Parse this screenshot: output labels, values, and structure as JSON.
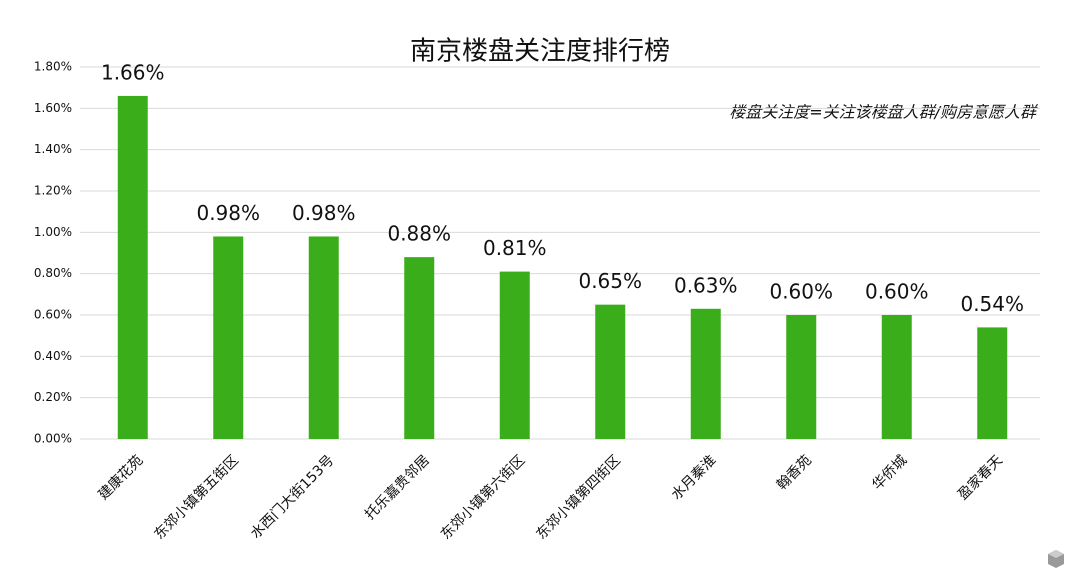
{
  "chart_data": {
    "type": "bar",
    "title": "南京楼盘关注度排行榜",
    "annotation": "楼盘关注度=关注该楼盘人群/购房意愿人群",
    "categories": [
      "建康花苑",
      "东郊小镇第五街区",
      "水西门大街153号",
      "托乐嘉贵邻居",
      "东郊小镇第六街区",
      "东郊小镇第四街区",
      "水月秦淮",
      "翰香苑",
      "华侨城",
      "盈家春天"
    ],
    "values": [
      1.66,
      0.98,
      0.98,
      0.88,
      0.81,
      0.65,
      0.63,
      0.6,
      0.6,
      0.54
    ],
    "value_labels": [
      "1.66%",
      "0.98%",
      "0.98%",
      "0.88%",
      "0.81%",
      "0.65%",
      "0.63%",
      "0.60%",
      "0.60%",
      "0.54%"
    ],
    "color": "#3aad1a",
    "ylim": [
      0,
      1.8
    ],
    "yticks": [
      {
        "value": 0,
        "label": "0.00%"
      },
      {
        "value": 0.2,
        "label": "0.20%"
      },
      {
        "value": 0.4,
        "label": "0.40%"
      },
      {
        "value": 0.6,
        "label": "0.60%"
      },
      {
        "value": 0.8,
        "label": "0.80%"
      },
      {
        "value": 1.0,
        "label": "1.00%"
      },
      {
        "value": 1.2,
        "label": "1.20%"
      },
      {
        "value": 1.4,
        "label": "1.40%"
      },
      {
        "value": 1.6,
        "label": "1.60%"
      },
      {
        "value": 1.8,
        "label": "1.80%"
      }
    ],
    "grid": true
  }
}
